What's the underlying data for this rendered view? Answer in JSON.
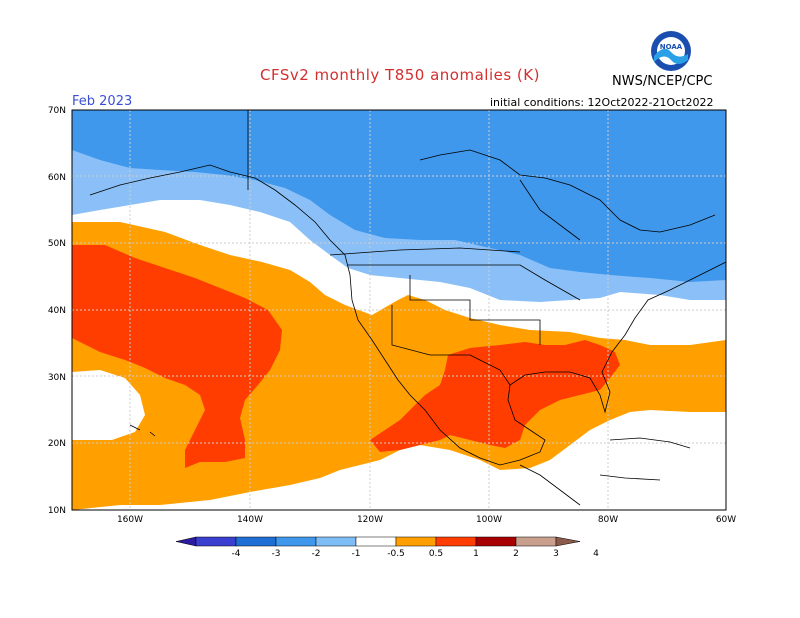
{
  "title": "CFSv2 monthly T850 anomalies (K)",
  "agency": "NWS/NCEP/CPC",
  "month_label": "Feb 2023",
  "initial_conditions": "initial conditions: 12Oct2022-21Oct2022",
  "logo_text": "NOAA",
  "lat_ticks": [
    "70N",
    "60N",
    "50N",
    "40N",
    "30N",
    "20N",
    "10N"
  ],
  "lon_ticks": [
    "160W",
    "140W",
    "120W",
    "100W",
    "80W",
    "60W"
  ],
  "colorbar": {
    "labels": [
      "-4",
      "-3",
      "-2",
      "-1",
      "-0.5",
      "0.5",
      "1",
      "2",
      "3",
      "4"
    ],
    "colors": [
      "#2b1ba0",
      "#3a3fd0",
      "#1f6fd6",
      "#3f98ec",
      "#7fbdf6",
      "#ffffff",
      "#ff9f00",
      "#ff3d00",
      "#a80000",
      "#c9a08d",
      "#8c5a4a"
    ]
  },
  "palette": {
    "blue_light": "#8ac0f7",
    "blue_mid": "#3f98ec",
    "orange": "#ff9f00",
    "red": "#ff3d00"
  }
}
